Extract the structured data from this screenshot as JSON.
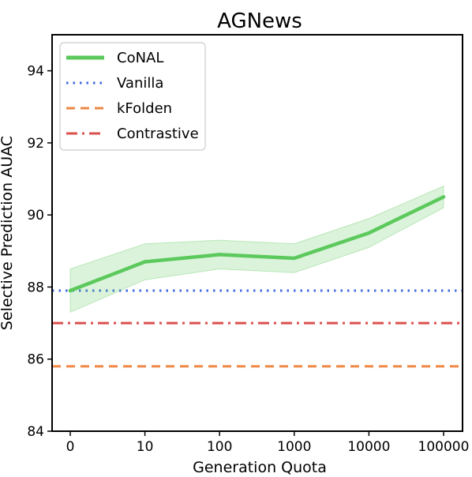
{
  "chart_data": {
    "type": "line",
    "title": "AGNews",
    "xlabel": "Generation Quota",
    "ylabel": "Selective Prediction AUAC",
    "categories": [
      "0",
      "10",
      "100",
      "1000",
      "10000",
      "100000"
    ],
    "ylim": [
      84,
      95
    ],
    "yticks": [
      84,
      86,
      88,
      90,
      92,
      94
    ],
    "grid": false,
    "legend_position": "top-left",
    "series": [
      {
        "name": "CoNAL",
        "style": "solid",
        "color": "#5cc95c",
        "values": [
          87.9,
          88.7,
          88.9,
          88.8,
          89.5,
          90.5
        ],
        "band_lower": [
          87.3,
          88.2,
          88.5,
          88.4,
          89.1,
          90.2
        ],
        "band_upper": [
          88.5,
          89.2,
          89.3,
          89.2,
          89.9,
          90.8
        ]
      },
      {
        "name": "Vanilla",
        "style": "dotted",
        "color": "#4169e1",
        "constant": 87.9
      },
      {
        "name": "kFolden",
        "style": "dashed",
        "color": "#ee8844",
        "constant": 85.8
      },
      {
        "name": "Contrastive",
        "style": "dashdot",
        "color": "#d9514e",
        "constant": 87.0
      }
    ]
  }
}
